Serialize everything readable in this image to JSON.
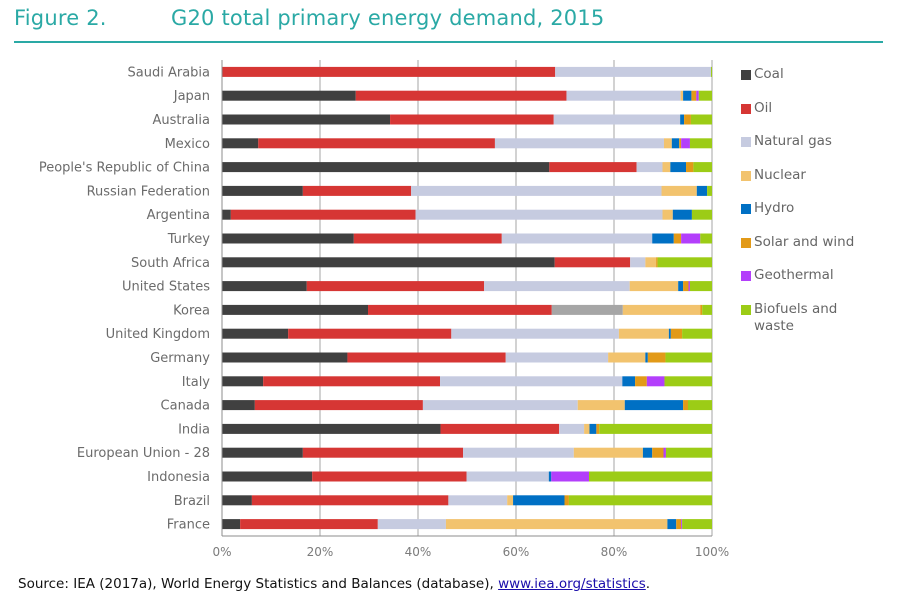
{
  "figure": {
    "number": "Figure 2.",
    "title": "G20 total primary energy demand, 2015"
  },
  "source": {
    "prefix": "Source: IEA (2017a), World Energy Statistics and Balances (database), ",
    "link_text": "www.iea.org/statistics",
    "suffix": "."
  },
  "chart_data": {
    "type": "bar",
    "orientation": "horizontal",
    "stacked": "percent",
    "title": "G20 total primary energy demand, 2015",
    "xlabel": "",
    "ylabel": "",
    "xlim": [
      0,
      100
    ],
    "x_ticks": [
      "0%",
      "20%",
      "40%",
      "60%",
      "80%",
      "100%"
    ],
    "grid": "vertical",
    "legend_position": "right",
    "categories": [
      "Saudi Arabia",
      "Japan",
      "Australia",
      "Mexico",
      "People's Republic of China",
      "Russian Federation",
      "Argentina",
      "Turkey",
      "South Africa",
      "United States",
      "Korea",
      "United Kingdom",
      "Germany",
      "Italy",
      "Canada",
      "India",
      "European Union - 28",
      "Indonesia",
      "Brazil",
      "France"
    ],
    "series": [
      {
        "name": "Coal",
        "color": "#404040",
        "values": [
          0,
          27.3,
          34.3,
          7.4,
          66.8,
          16.5,
          1.8,
          26.9,
          67.9,
          17.3,
          29.8,
          13.5,
          25.6,
          8.4,
          6.7,
          44.6,
          16.5,
          18.4,
          6.1,
          3.7
        ]
      },
      {
        "name": "Oil",
        "color": "#d63634",
        "values": [
          68.0,
          43.0,
          33.4,
          48.3,
          17.8,
          22.1,
          37.7,
          30.2,
          15.4,
          36.2,
          37.5,
          33.3,
          32.3,
          36.1,
          34.3,
          24.2,
          32.7,
          31.5,
          40.1,
          28.1
        ]
      },
      {
        "name": "Natural gas",
        "color": "#c6cbe0",
        "values": [
          31.8,
          23.3,
          25.8,
          34.5,
          5.3,
          51.1,
          50.4,
          30.7,
          3.1,
          29.7,
          14.5,
          34.2,
          20.9,
          37.2,
          31.6,
          5.1,
          22.6,
          16.8,
          12.0,
          13.9
        ]
      },
      {
        "name": "Nuclear",
        "color": "#f2c36e",
        "values": [
          0,
          0.5,
          0,
          1.6,
          1.6,
          7.2,
          2.1,
          0,
          2.2,
          9.9,
          15.8,
          10.2,
          7.6,
          0,
          9.6,
          1.1,
          14.1,
          0,
          1.2,
          45.2
        ]
      },
      {
        "name": "Hydro",
        "color": "#0070c4",
        "values": [
          0,
          1.7,
          0.8,
          1.5,
          3.2,
          2.1,
          3.9,
          4.4,
          0,
          1.0,
          0,
          0.4,
          0.5,
          2.6,
          11.9,
          1.4,
          1.9,
          0.5,
          10.5,
          1.8
        ]
      },
      {
        "name": "Solar and wind",
        "color": "#e29a18",
        "values": [
          0,
          1.0,
          1.4,
          0.4,
          1.5,
          0,
          0,
          1.5,
          0.3,
          1.1,
          0.4,
          2.3,
          3.6,
          2.4,
          1.0,
          0.6,
          2.3,
          0,
          0.9,
          1.0
        ]
      },
      {
        "name": "Geothermal",
        "color": "#b33ffb",
        "values": [
          0,
          0.5,
          0,
          1.8,
          0,
          0,
          0,
          3.9,
          0,
          0.3,
          0,
          0,
          0,
          3.6,
          0,
          0,
          0.5,
          7.7,
          0,
          0.2
        ]
      },
      {
        "name": "Biofuels and waste",
        "color": "#9ccc16",
        "values": [
          0.2,
          2.7,
          4.3,
          4.5,
          3.8,
          1.0,
          4.1,
          2.4,
          11.1,
          4.5,
          2.0,
          6.1,
          9.5,
          9.7,
          4.9,
          23.0,
          9.4,
          25.1,
          29.2,
          6.1
        ]
      }
    ],
    "annotations": [
      "Korea natural gas segment drawn in darker grey (#a6a6a6)"
    ]
  },
  "legend": [
    {
      "label": "Coal",
      "color": "#404040"
    },
    {
      "label": "Oil",
      "color": "#d63634"
    },
    {
      "label": "Natural gas",
      "color": "#c6cbe0"
    },
    {
      "label": "Nuclear",
      "color": "#f2c36e"
    },
    {
      "label": "Hydro",
      "color": "#0070c4"
    },
    {
      "label": "Solar and wind",
      "color": "#e29a18"
    },
    {
      "label": "Geothermal",
      "color": "#b33ffb"
    },
    {
      "label": "Biofuels and waste",
      "color": "#9ccc16"
    }
  ],
  "overrides": {
    "Korea": {
      "Natural gas": "#a6a6a6"
    }
  }
}
